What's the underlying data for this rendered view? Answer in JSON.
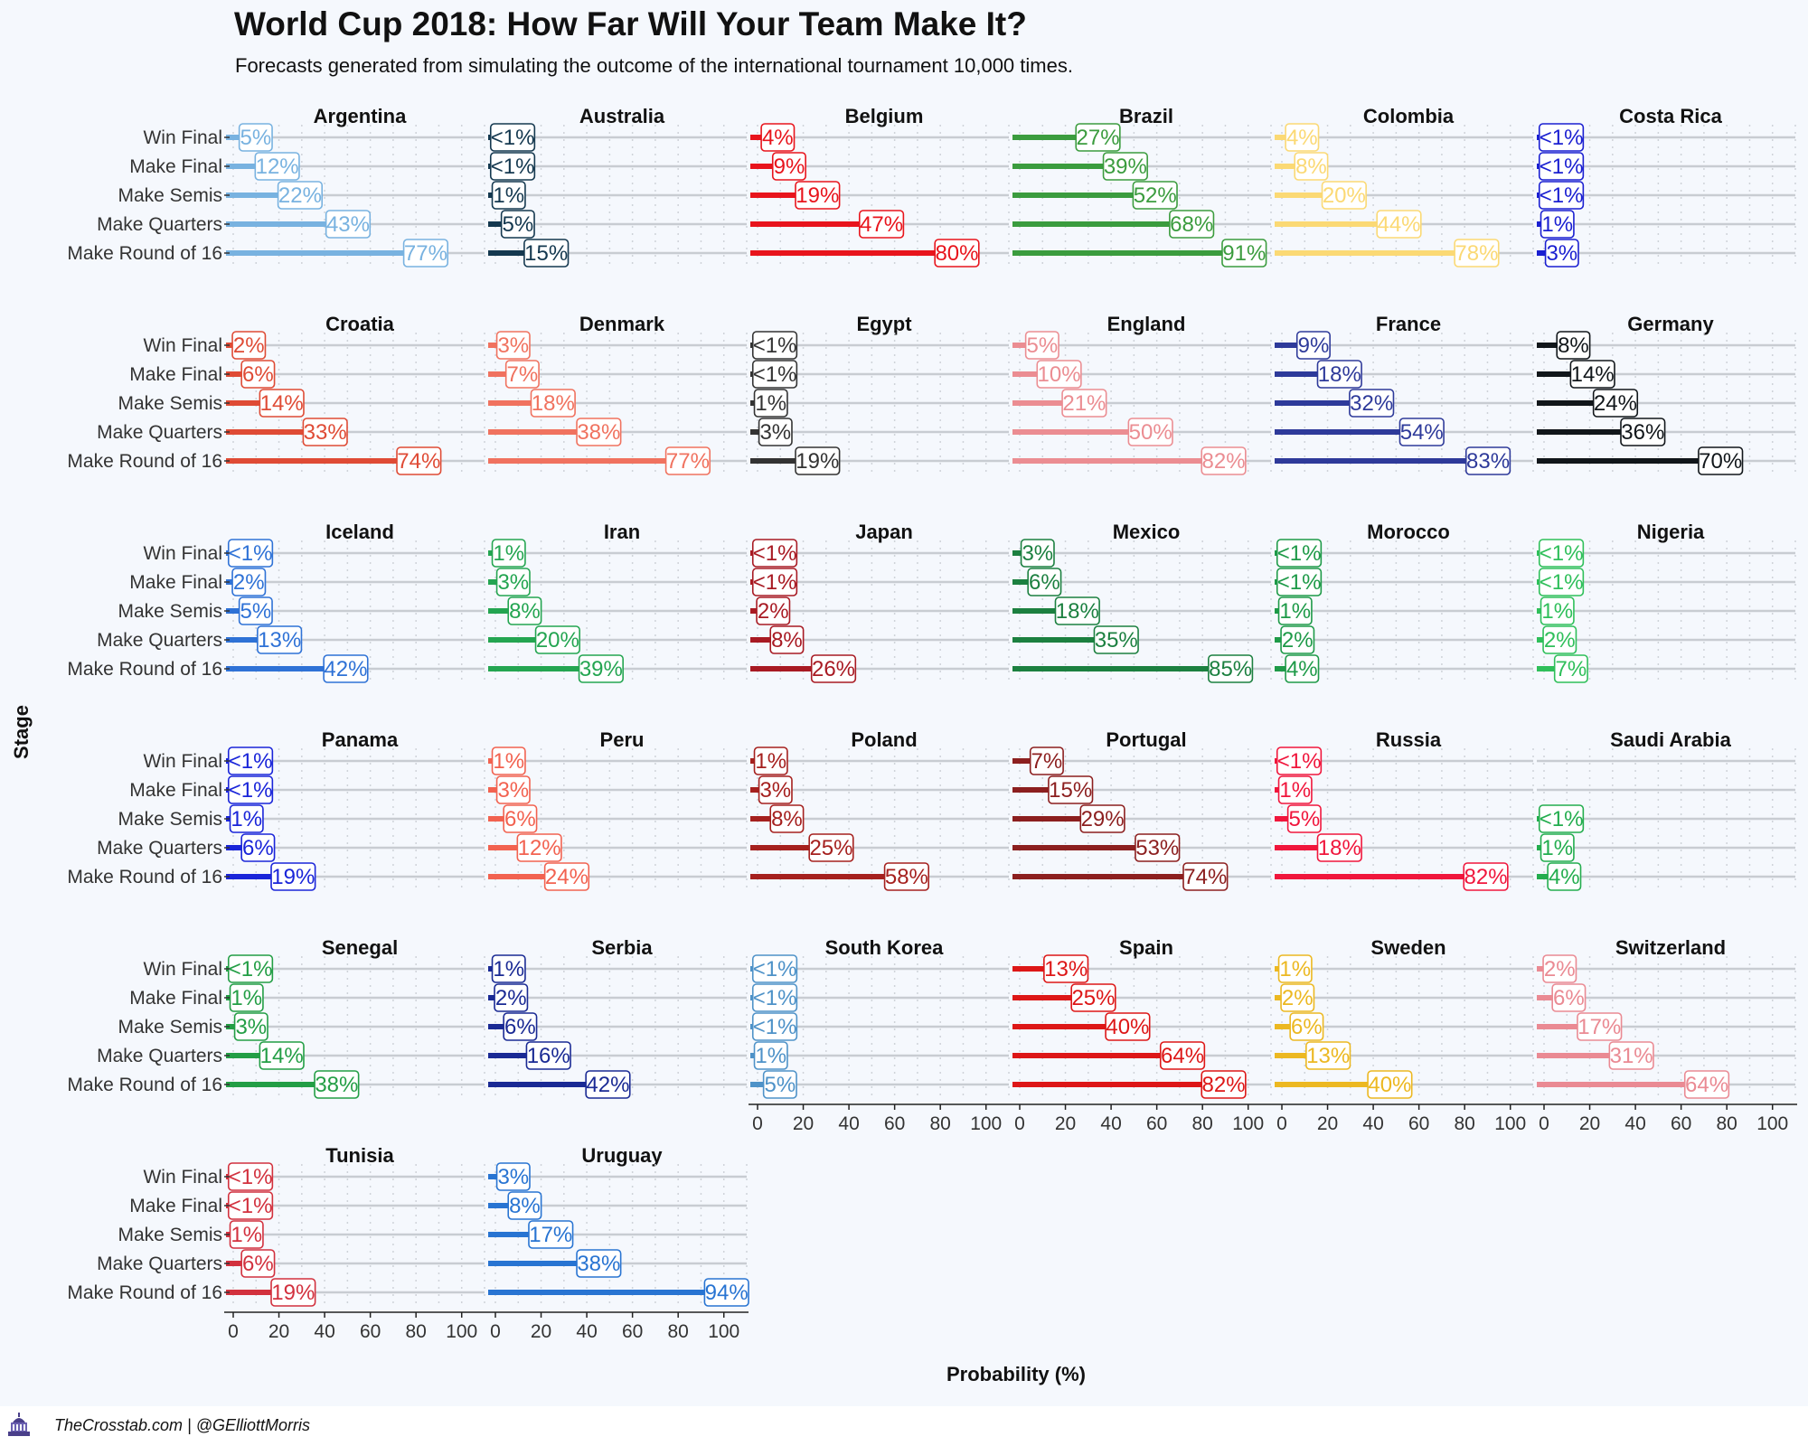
{
  "title": "World Cup 2018: How Far Will Your Team Make It?",
  "subtitle": "Forecasts generated from simulating the outcome of the international tournament 10,000 times.",
  "footer": "TheCrosstab.com | @GElliottMorris",
  "chart_data": {
    "type": "bar",
    "orientation": "horizontal",
    "layout": "small-multiples",
    "xlabel": "Probability (%)",
    "ylabel": "Stage",
    "xlim": [
      0,
      110
    ],
    "x_ticks": [
      0,
      20,
      40,
      60,
      80,
      100
    ],
    "categories": [
      "Win Final",
      "Make Final",
      "Make Semis",
      "Make Quarters",
      "Make Round of 16"
    ],
    "grid": "horizontal lines per category, dotted vertical at 10-unit steps",
    "panels": [
      {
        "team": "Argentina",
        "color": "#78b2e0",
        "values": [
          5,
          12,
          22,
          43,
          77
        ],
        "labels": [
          "5%",
          "12%",
          "22%",
          "43%",
          "77%"
        ]
      },
      {
        "team": "Australia",
        "color": "#14384f",
        "values": [
          0.3,
          0.3,
          1,
          5,
          15
        ],
        "labels": [
          "<1%",
          "<1%",
          "1%",
          "5%",
          "15%"
        ]
      },
      {
        "team": "Belgium",
        "color": "#e8141c",
        "values": [
          4,
          9,
          19,
          47,
          80
        ],
        "labels": [
          "4%",
          "9%",
          "19%",
          "47%",
          "80%"
        ]
      },
      {
        "team": "Brazil",
        "color": "#3b9c3e",
        "values": [
          27,
          39,
          52,
          68,
          91
        ],
        "labels": [
          "27%",
          "39%",
          "52%",
          "68%",
          "91%"
        ]
      },
      {
        "team": "Colombia",
        "color": "#fbd974",
        "values": [
          4,
          8,
          20,
          44,
          78
        ],
        "labels": [
          "4%",
          "8%",
          "20%",
          "44%",
          "78%"
        ]
      },
      {
        "team": "Costa Rica",
        "color": "#1a1fd1",
        "values": [
          0.3,
          0.3,
          0.3,
          1,
          3
        ],
        "labels": [
          "<1%",
          "<1%",
          "<1%",
          "1%",
          "3%"
        ]
      },
      {
        "team": "Croatia",
        "color": "#df4b35",
        "values": [
          2,
          6,
          14,
          33,
          74
        ],
        "labels": [
          "2%",
          "6%",
          "14%",
          "33%",
          "74%"
        ]
      },
      {
        "team": "Denmark",
        "color": "#f0725f",
        "values": [
          3,
          7,
          18,
          38,
          77
        ],
        "labels": [
          "3%",
          "7%",
          "18%",
          "38%",
          "77%"
        ]
      },
      {
        "team": "Egypt",
        "color": "#333333",
        "values": [
          0.3,
          0.3,
          1,
          3,
          19
        ],
        "labels": [
          "<1%",
          "<1%",
          "1%",
          "3%",
          "19%"
        ]
      },
      {
        "team": "England",
        "color": "#eb8d92",
        "values": [
          5,
          10,
          21,
          50,
          82
        ],
        "labels": [
          "5%",
          "10%",
          "21%",
          "50%",
          "82%"
        ]
      },
      {
        "team": "France",
        "color": "#2e3a9a",
        "values": [
          9,
          18,
          32,
          54,
          83
        ],
        "labels": [
          "9%",
          "18%",
          "32%",
          "54%",
          "83%"
        ]
      },
      {
        "team": "Germany",
        "color": "#11161a",
        "values": [
          8,
          14,
          24,
          36,
          70
        ],
        "labels": [
          "8%",
          "14%",
          "24%",
          "36%",
          "70%"
        ]
      },
      {
        "team": "Iceland",
        "color": "#2f72d6",
        "values": [
          0.3,
          2,
          5,
          13,
          42
        ],
        "labels": [
          "<1%",
          "2%",
          "5%",
          "13%",
          "42%"
        ]
      },
      {
        "team": "Iran",
        "color": "#24a551",
        "values": [
          1,
          3,
          8,
          20,
          39
        ],
        "labels": [
          "1%",
          "3%",
          "8%",
          "20%",
          "39%"
        ]
      },
      {
        "team": "Japan",
        "color": "#a81a23",
        "values": [
          0.3,
          0.3,
          2,
          8,
          26
        ],
        "labels": [
          "<1%",
          "<1%",
          "2%",
          "8%",
          "26%"
        ]
      },
      {
        "team": "Mexico",
        "color": "#1c8040",
        "values": [
          3,
          6,
          18,
          35,
          85
        ],
        "labels": [
          "3%",
          "6%",
          "18%",
          "35%",
          "85%"
        ]
      },
      {
        "team": "Morocco",
        "color": "#1e9a48",
        "values": [
          0.3,
          0.3,
          1,
          2,
          4
        ],
        "labels": [
          "<1%",
          "<1%",
          "1%",
          "2%",
          "4%"
        ]
      },
      {
        "team": "Nigeria",
        "color": "#2fbf5a",
        "values": [
          0.3,
          0.3,
          1,
          2,
          7
        ],
        "labels": [
          "<1%",
          "<1%",
          "1%",
          "2%",
          "7%"
        ]
      },
      {
        "team": "Panama",
        "color": "#1a25d9",
        "values": [
          0.3,
          0.3,
          1,
          6,
          19
        ],
        "labels": [
          "<1%",
          "<1%",
          "1%",
          "6%",
          "19%"
        ]
      },
      {
        "team": "Peru",
        "color": "#f26250",
        "values": [
          1,
          3,
          6,
          12,
          24
        ],
        "labels": [
          "1%",
          "3%",
          "6%",
          "12%",
          "24%"
        ]
      },
      {
        "team": "Poland",
        "color": "#a5201e",
        "values": [
          1,
          3,
          8,
          25,
          58
        ],
        "labels": [
          "1%",
          "3%",
          "8%",
          "25%",
          "58%"
        ]
      },
      {
        "team": "Portugal",
        "color": "#8c1f1f",
        "values": [
          7,
          15,
          29,
          53,
          74
        ],
        "labels": [
          "7%",
          "15%",
          "29%",
          "53%",
          "74%"
        ]
      },
      {
        "team": "Russia",
        "color": "#f0163c",
        "values": [
          0.3,
          1,
          5,
          18,
          82
        ],
        "labels": [
          "<1%",
          "1%",
          "5%",
          "18%",
          "82%"
        ]
      },
      {
        "team": "Saudi Arabia",
        "color": "#23ad4e",
        "values": [
          null,
          null,
          0.3,
          1,
          4
        ],
        "labels": [
          "",
          "",
          "<1%",
          "1%",
          "4%"
        ]
      },
      {
        "team": "Senegal",
        "color": "#239e45",
        "values": [
          0.3,
          1,
          3,
          14,
          38
        ],
        "labels": [
          "<1%",
          "1%",
          "3%",
          "14%",
          "38%"
        ]
      },
      {
        "team": "Serbia",
        "color": "#1a2a94",
        "values": [
          1,
          2,
          6,
          16,
          42
        ],
        "labels": [
          "1%",
          "2%",
          "6%",
          "16%",
          "42%"
        ]
      },
      {
        "team": "South Korea",
        "color": "#4e92c8",
        "values": [
          0.3,
          0.3,
          0.3,
          1,
          5
        ],
        "labels": [
          "<1%",
          "<1%",
          "<1%",
          "1%",
          "5%"
        ]
      },
      {
        "team": "Spain",
        "color": "#dd1717",
        "values": [
          13,
          25,
          40,
          64,
          82
        ],
        "labels": [
          "13%",
          "25%",
          "40%",
          "64%",
          "82%"
        ]
      },
      {
        "team": "Sweden",
        "color": "#ecb821",
        "values": [
          1,
          2,
          6,
          13,
          40
        ],
        "labels": [
          "1%",
          "2%",
          "6%",
          "13%",
          "40%"
        ]
      },
      {
        "team": "Switzerland",
        "color": "#ea8a93",
        "values": [
          2,
          6,
          17,
          31,
          64
        ],
        "labels": [
          "2%",
          "6%",
          "17%",
          "31%",
          "64%"
        ]
      },
      {
        "team": "Tunisia",
        "color": "#d2313e",
        "values": [
          0.3,
          0.3,
          1,
          6,
          19
        ],
        "labels": [
          "<1%",
          "<1%",
          "1%",
          "6%",
          "19%"
        ]
      },
      {
        "team": "Uruguay",
        "color": "#2874d2",
        "values": [
          3,
          8,
          17,
          38,
          94
        ],
        "labels": [
          "3%",
          "8%",
          "17%",
          "38%",
          "94%"
        ]
      }
    ]
  }
}
